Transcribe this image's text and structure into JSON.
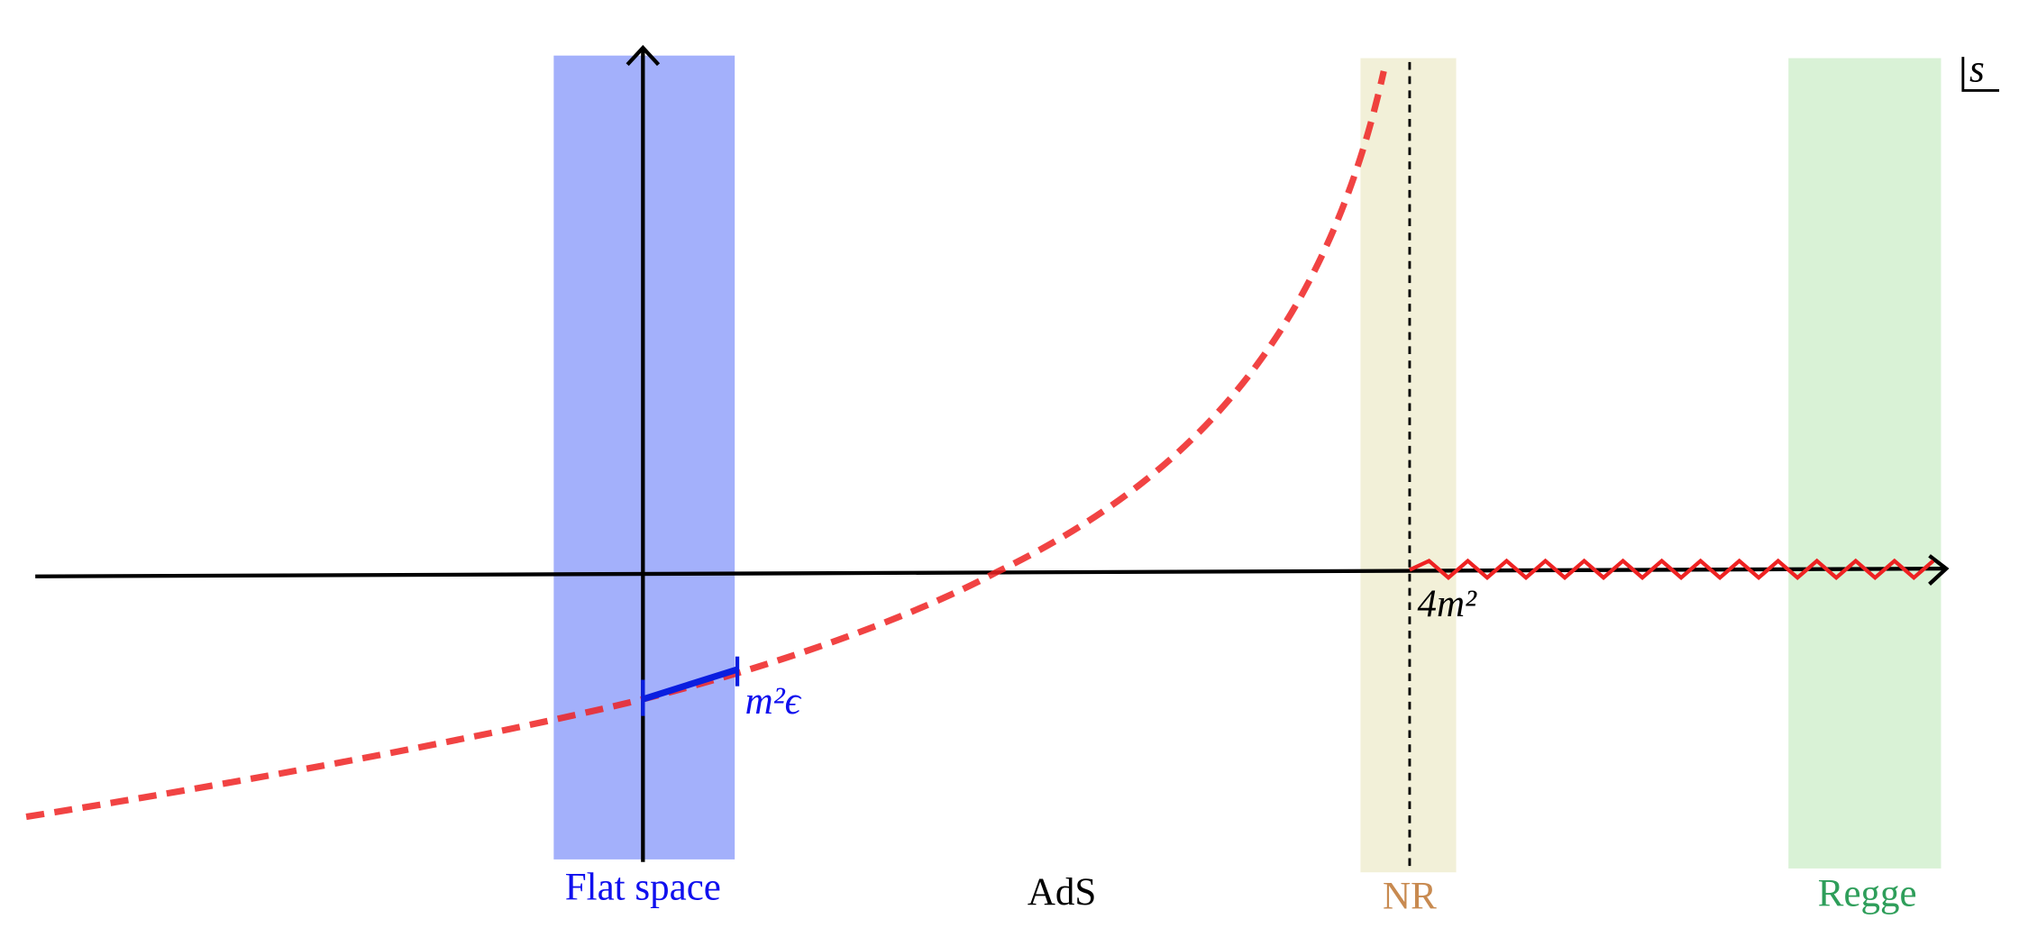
{
  "labels": {
    "flat_space": "Flat space",
    "ads": "AdS",
    "nr": "NR",
    "regge": "Regge",
    "threshold": "4m²",
    "offset": "m²ϵ",
    "variable": "s"
  }
}
